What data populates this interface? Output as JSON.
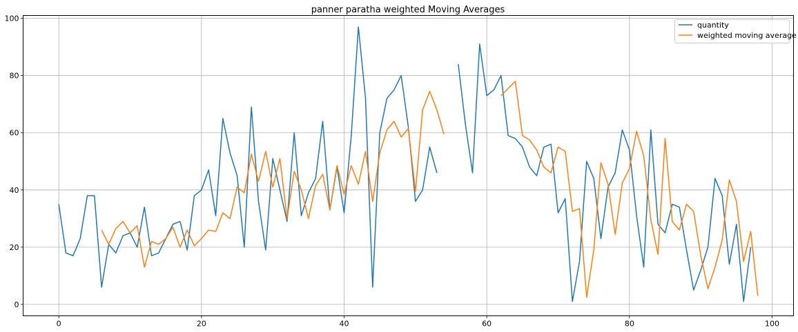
{
  "chart_data": {
    "type": "line",
    "title": "panner paratha weighted Moving Averages",
    "xlabel": "",
    "ylabel": "",
    "xlim": [
      -5,
      103
    ],
    "ylim": [
      -4,
      101
    ],
    "xticks": [
      0,
      20,
      40,
      60,
      80,
      100
    ],
    "yticks": [
      0,
      20,
      40,
      60,
      80,
      100
    ],
    "grid": true,
    "legend_position": "top-right",
    "series": [
      {
        "name": "quantity",
        "color": "#1f77b4",
        "values": [
          35,
          18,
          17,
          23,
          38,
          38,
          6,
          21,
          18,
          24,
          25,
          20,
          34,
          17,
          18,
          23,
          28,
          29,
          19,
          38,
          40,
          47,
          31,
          65,
          53,
          45,
          20,
          69,
          36,
          19,
          51,
          40,
          29,
          60,
          31,
          39,
          44,
          64,
          33,
          48,
          32,
          59,
          97,
          72,
          6,
          60,
          72,
          75,
          80,
          62,
          36,
          40,
          55,
          46,
          null,
          null,
          84,
          63,
          46,
          91,
          73,
          75,
          80,
          59,
          58,
          55,
          48,
          45,
          55,
          56,
          32,
          37,
          1,
          15,
          50,
          44,
          23,
          41,
          46,
          61,
          54,
          31,
          13,
          61,
          28,
          25,
          35,
          34,
          19,
          5,
          12,
          20,
          44,
          38,
          14,
          28,
          1,
          20,
          null
        ]
      },
      {
        "name": "weighted moving average",
        "color": "#ff7f0e",
        "values": [
          null,
          null,
          null,
          null,
          null,
          null,
          26,
          21,
          26.5,
          29,
          25,
          27.5,
          13,
          22,
          21,
          23,
          27,
          20,
          26,
          20.5,
          23,
          26,
          25.5,
          32,
          30,
          41,
          39,
          52.5,
          43,
          53.5,
          41,
          51,
          30,
          46.5,
          40,
          30,
          41.5,
          45.5,
          33,
          48.5,
          38.5,
          48.5,
          42,
          53.5,
          36,
          53,
          61,
          64,
          58.5,
          61.5,
          39.5,
          68,
          74.5,
          68,
          59.5,
          null,
          null,
          null,
          null,
          null,
          null,
          null,
          73,
          75.5,
          78,
          59,
          57.5,
          54,
          48,
          46,
          55,
          53.5,
          32.5,
          33.5,
          2.5,
          19,
          49.5,
          42,
          24.5,
          42.5,
          47.5,
          60.5,
          52,
          29.5,
          17.5,
          58,
          29,
          26,
          35,
          32.5,
          17,
          5.5,
          13,
          22.5,
          43.5,
          36,
          15,
          25.5,
          3
        ]
      }
    ]
  }
}
